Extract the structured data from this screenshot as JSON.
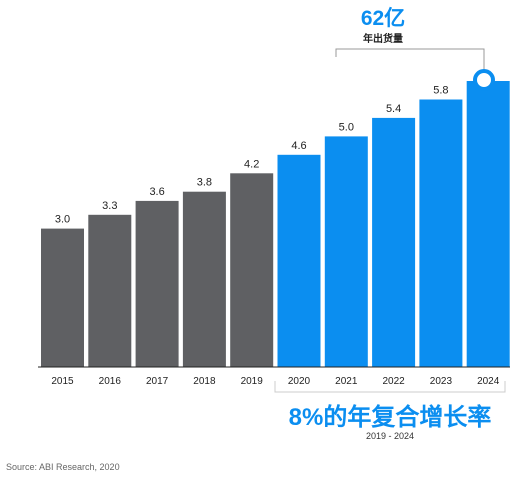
{
  "chart_data": {
    "type": "bar",
    "categories": [
      "2015",
      "2016",
      "2017",
      "2018",
      "2019",
      "2020",
      "2021",
      "2022",
      "2023",
      "2024"
    ],
    "values": [
      3.0,
      3.3,
      3.6,
      3.8,
      4.2,
      4.6,
      5.0,
      5.4,
      5.8,
      6.2
    ],
    "value_labels": [
      "3.0",
      "3.3",
      "3.6",
      "3.8",
      "4.2",
      "4.6",
      "5.0",
      "5.4",
      "5.8",
      ""
    ],
    "ylim": [
      0,
      6.2
    ],
    "grid": false,
    "colors": {
      "actual": "#5f6063",
      "forecast": "#0b8ef0"
    },
    "forecast_start_index": 5,
    "callout": {
      "value": "62亿",
      "label": "年出货量"
    },
    "cagr": {
      "title": "8%的年复合增长率",
      "range": "2019 - 2024"
    }
  },
  "source": "Source: ABI Research, 2020"
}
